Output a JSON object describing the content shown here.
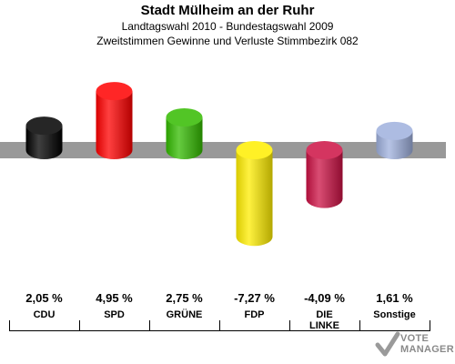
{
  "header": {
    "title": "Stadt Mülheim an der Ruhr",
    "subtitle1": "Landtagswahl 2010 - Bundestagswahl 2009",
    "subtitle2": "Zweitstimmen Gewinne und Verluste Stimmbezirk 082"
  },
  "chart_data": {
    "type": "bar",
    "categories": [
      "CDU",
      "SPD",
      "GRÜNE",
      "FDP",
      "DIE LINKE",
      "Sonstige"
    ],
    "category_lines": [
      [
        "CDU"
      ],
      [
        "SPD"
      ],
      [
        "GRÜNE"
      ],
      [
        "FDP"
      ],
      [
        "DIE",
        "LINKE"
      ],
      [
        "Sonstige"
      ]
    ],
    "values": [
      2.05,
      4.95,
      2.75,
      -7.27,
      -4.09,
      1.61
    ],
    "value_labels": [
      "2,05 %",
      "4,95 %",
      "2,75 %",
      "-7,27 %",
      "-4,09 %",
      "1,61 %"
    ],
    "colors": [
      "#000000",
      "#ff0000",
      "#33bb00",
      "#ffee00",
      "#cc1144",
      "#9fb0dd"
    ],
    "ylim": [
      -7.27,
      4.95
    ],
    "grid": false,
    "legend": "none"
  },
  "logo": {
    "line1": "VOTE",
    "line2": "MANAGER"
  }
}
